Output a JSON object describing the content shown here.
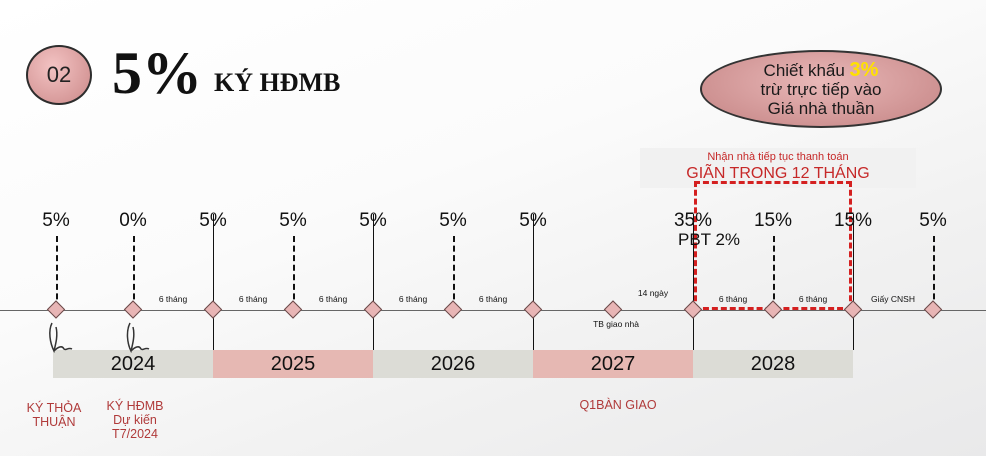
{
  "header": {
    "badge": "02",
    "percent": "5%",
    "title": "KÝ HĐMB"
  },
  "discount_bubble": {
    "line1_prefix": "Chiết khấu ",
    "line1_highlight": "3%",
    "line2": "trừ  trực tiếp vào",
    "line3": "Giá  nhà thuần",
    "highlight_color": "#ffe100"
  },
  "installment_note": {
    "line1": "Nhận nhà tiếp tục thanh toán",
    "line2": "GIÃN TRONG 12 THÁNG"
  },
  "timeline": {
    "payments": [
      "5%",
      "0%",
      "5%",
      "5%",
      "5%",
      "5%",
      "5%",
      "35%",
      "15%",
      "15%",
      "5%"
    ],
    "pbt_label": "PBT 2%",
    "intervals": [
      "6 tháng",
      "6 tháng",
      "6 tháng",
      "6 tháng",
      "6 tháng",
      "14 ngày",
      "6 tháng",
      "6 tháng",
      "Giấy CNSH"
    ],
    "handover_note": "TB giao nhà",
    "years": [
      "2024",
      "2025",
      "2026",
      "2027",
      "2028"
    ]
  },
  "footer_labels": {
    "sign_agreement": "KÝ THỎA\nTHUẬN",
    "sign_hdmb": "KÝ HĐMB\nDự kiến\nT7/2024",
    "q1_handover": "Q1BÀN GIAO"
  },
  "colors": {
    "accent_red": "#d42020",
    "pink": "#e6b8b3",
    "gray": "#dcdcd6",
    "label_red": "#b03a3a"
  }
}
